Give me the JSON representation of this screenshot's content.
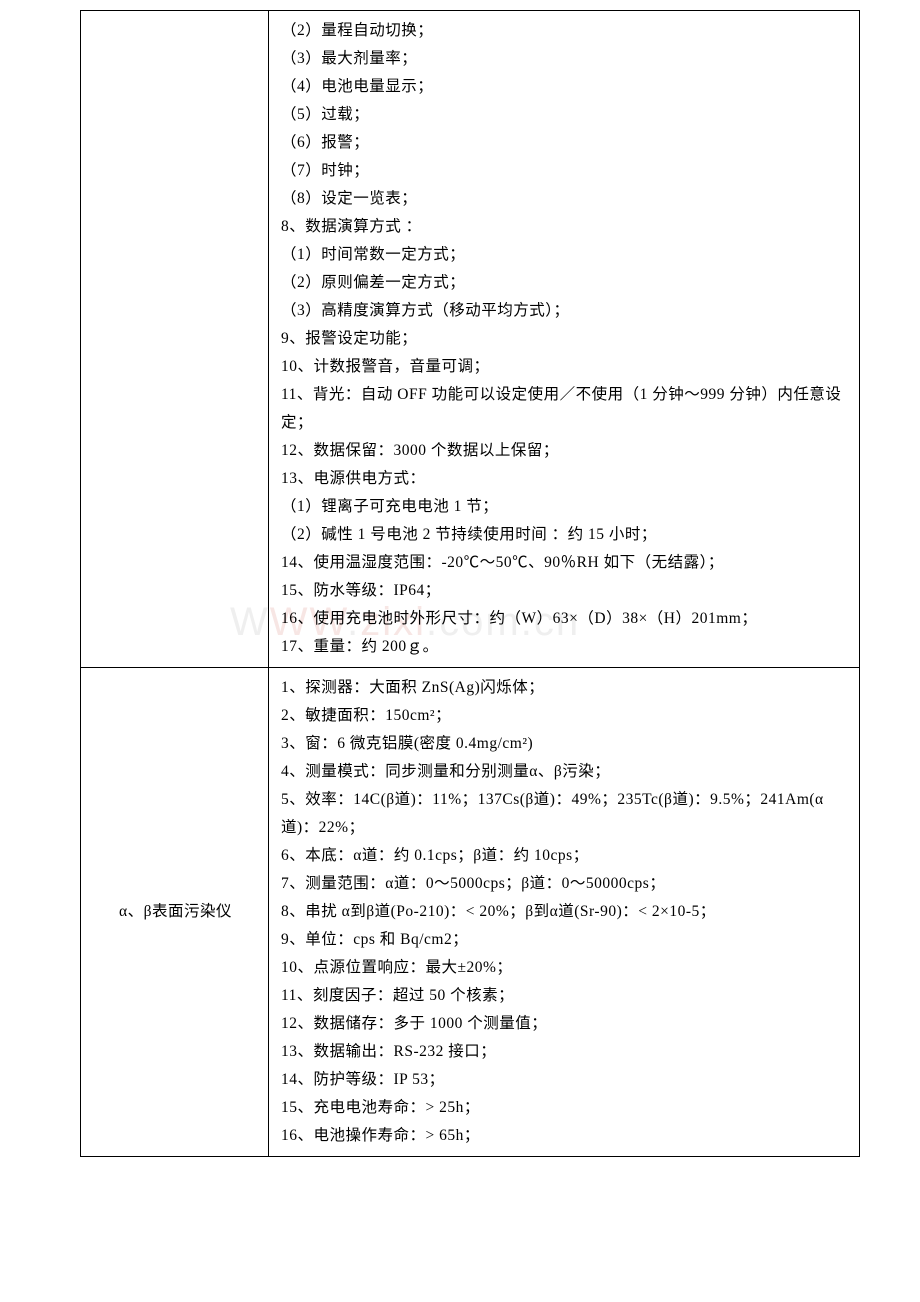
{
  "watermark": {
    "text_prefix": "W",
    "text_mid1": "W",
    "text_mid2": "W",
    "text_dot": ".",
    "text_domain": "zixi",
    "text_dot2": ".",
    "text_com": "com",
    "text_dot3": ".",
    "text_cn": "cn"
  },
  "row1": {
    "label": "",
    "lines": [
      "（2）量程自动切换；",
      "（3）最大剂量率；",
      "（4）电池电量显示；",
      "（5）过载；",
      "（6）报警；",
      "（7）时钟；",
      "（8）设定一览表；",
      "8、数据演算方式 ：",
      "（1）时间常数一定方式；",
      "（2）原则偏差一定方式；",
      "（3）高精度演算方式（移动平均方式）；",
      "9、报警设定功能；",
      "10、计数报警音，音量可调；",
      "11、背光：自动 OFF 功能可以设定使用／不使用（1 分钟～999 分钟）内任意设定；",
      "12、数据保留：3000 个数据以上保留；",
      "13、电源供电方式：",
      "（1）锂离子可充电电池 1 节；",
      "（2）碱性 1 号电池 2 节持续使用时间 ：约 15 小时；",
      "14、使用温湿度范围：-20℃～50℃、90％RH 如下（无结露）；",
      "15、防水等级：IP64；",
      "16、使用充电池时外形尺寸：约（W）63×（D）38×（H）201mm；",
      "17、重量：约 200ｇ。"
    ]
  },
  "row2": {
    "label": "α、β表面污染仪",
    "lines": [
      "1、探测器：大面积 ZnS(Ag)闪烁体；",
      "2、敏捷面积：150cm²；",
      "3、窗：6 微克铝膜(密度 0.4mg/cm²)",
      "4、测量模式：同步测量和分别测量α、β污染；",
      "5、效率：14C(β道)：11%；137Cs(β道)：49%；235Tc(β道)：9.5%；241Am(α道)：22%；",
      "6、本底：α道：约 0.1cps；β道：约 10cps；",
      "7、测量范围：α道：0～5000cps；β道：0～50000cps；",
      "8、串扰 α到β道(Po-210)：< 20%；β到α道(Sr-90)：< 2×10-5；",
      "9、单位：cps 和 Bq/cm2；",
      "10、点源位置响应：最大±20%；",
      "11、刻度因子：超过 50 个核素；",
      "12、数据储存：多于 1000 个测量值；",
      "13、数据输出：RS-232 接口；",
      "14、防护等级：IP 53；",
      "15、充电电池寿命：> 25h；",
      "16、电池操作寿命：> 65h；"
    ]
  }
}
